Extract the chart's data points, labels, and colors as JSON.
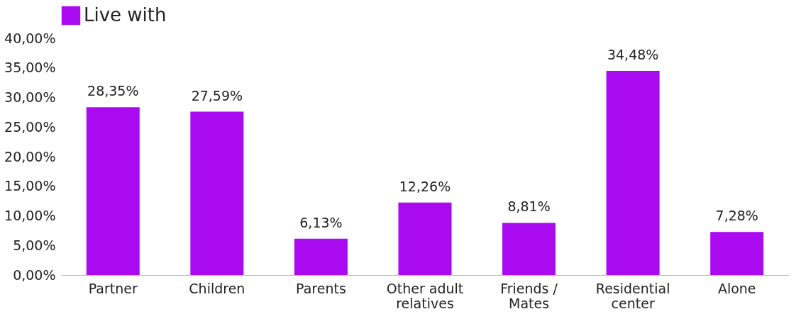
{
  "chart_data": {
    "type": "bar",
    "categories": [
      "Partner",
      "Children",
      "Parents",
      "Other adult relatives",
      "Friends / Mates",
      "Residential center",
      "Alone"
    ],
    "series": [
      {
        "name": "Live with",
        "color": "#aa0aef",
        "values": [
          28.35,
          27.59,
          6.13,
          12.26,
          8.81,
          34.48,
          7.28
        ],
        "value_labels": [
          "28,35%",
          "27,59%",
          "6,13%",
          "12,26%",
          "8,81%",
          "34,48%",
          "7,28%"
        ]
      }
    ],
    "ylim": [
      0,
      40
    ],
    "yticks": [
      {
        "value": 0,
        "label": "0,00%"
      },
      {
        "value": 5,
        "label": "5,00%"
      },
      {
        "value": 10,
        "label": "10,00%"
      },
      {
        "value": 15,
        "label": "15,00%"
      },
      {
        "value": 20,
        "label": "20,00%"
      },
      {
        "value": 25,
        "label": "25,00%"
      },
      {
        "value": 30,
        "label": "30,00%"
      },
      {
        "value": 35,
        "label": "35,00%"
      },
      {
        "value": 40,
        "label": "40,00%"
      }
    ],
    "grid": false,
    "legend": "top"
  }
}
